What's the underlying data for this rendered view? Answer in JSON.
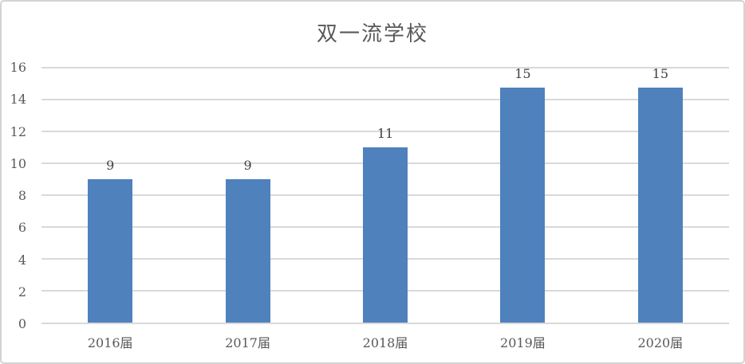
{
  "chart": {
    "title": "双一流学校",
    "colors": {
      "bar": "#4F81BD",
      "gridline": "#D9D9D9",
      "axis_line": "#D9D9D9",
      "tick_label": "#595959",
      "data_label": "#404040",
      "title": "#595959",
      "border": "#D3D3D3",
      "background": "#FFFFFF"
    }
  },
  "chart_data": {
    "type": "bar",
    "title": "双一流学校",
    "categories": [
      "2016届",
      "2017届",
      "2018届",
      "2019届",
      "2020届"
    ],
    "values": [
      9,
      9,
      11,
      15,
      15
    ],
    "data_labels": [
      "9",
      "9",
      "11",
      "15",
      "15"
    ],
    "xlabel": "",
    "ylabel": "",
    "ylim": [
      0,
      16
    ],
    "ytick_interval": 2,
    "yticks": [
      0,
      2,
      4,
      6,
      8,
      10,
      12,
      14,
      16
    ],
    "grid": true,
    "legend": false,
    "data_labels_shown": true
  }
}
